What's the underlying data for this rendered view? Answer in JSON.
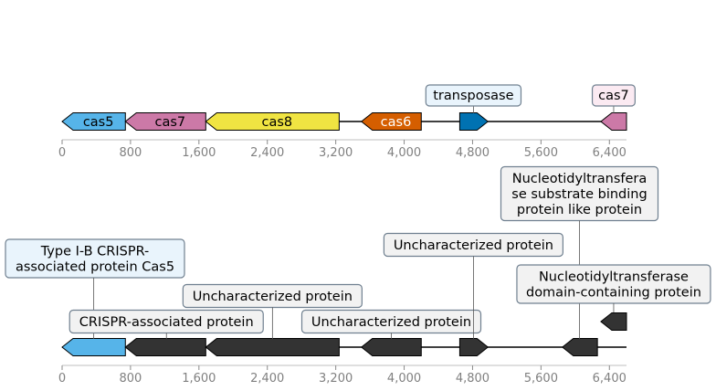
{
  "top_track": {
    "axis": {
      "min": 0,
      "max": 6600,
      "ticks": [
        0,
        800,
        1600,
        2400,
        3200,
        4000,
        4800,
        5600,
        6400
      ],
      "tick_labels": [
        "0",
        "800",
        "1,600",
        "2,400",
        "3,200",
        "4,000",
        "4,800",
        "5,600",
        "6,400"
      ]
    },
    "genes": [
      {
        "id": "cas5",
        "label": "cas5",
        "start": 0,
        "end": 740,
        "strand": -1,
        "color": "#56b4e9",
        "text_color": "#000000"
      },
      {
        "id": "cas7",
        "label": "cas7",
        "start": 740,
        "end": 1680,
        "strand": -1,
        "color": "#cc79a7",
        "text_color": "#000000"
      },
      {
        "id": "cas8",
        "label": "cas8",
        "start": 1680,
        "end": 3240,
        "strand": -1,
        "color": "#f0e442",
        "text_color": "#000000"
      },
      {
        "id": "cas6",
        "label": "cas6",
        "start": 3500,
        "end": 4200,
        "strand": -1,
        "color": "#d55e00",
        "text_color": "#ffffff"
      },
      {
        "id": "transposase-gene",
        "label": "",
        "start": 4650,
        "end": 4980,
        "strand": 1,
        "color": "#0072b2",
        "text_color": "#000000"
      },
      {
        "id": "cas7-partial",
        "label": "",
        "start": 6300,
        "end": 6600,
        "strand": -1,
        "color": "#cc79a7",
        "text_color": "#000000"
      }
    ],
    "callouts": [
      {
        "id": "transposase",
        "label": "transposase",
        "position": 4810,
        "fill": "#e9f4fc",
        "stroke": "#708090"
      },
      {
        "id": "cas7-label",
        "label": "cas7",
        "position": 6450,
        "fill": "#fbeaf2",
        "stroke": "#708090"
      }
    ]
  },
  "bottom_track": {
    "axis": {
      "min": 0,
      "max": 6600,
      "ticks": [
        0,
        800,
        1600,
        2400,
        3200,
        4000,
        4800,
        5600,
        6400
      ],
      "tick_labels": [
        "0",
        "800",
        "1,600",
        "2,400",
        "3,200",
        "4,000",
        "4,800",
        "5,600",
        "6,400"
      ]
    },
    "genes": [
      {
        "id": "g1",
        "start": 0,
        "end": 740,
        "strand": -1,
        "color": "#56b4e9",
        "row": 0
      },
      {
        "id": "g2",
        "start": 740,
        "end": 1680,
        "strand": -1,
        "color": "#333333",
        "row": 0
      },
      {
        "id": "g3",
        "start": 1680,
        "end": 3240,
        "strand": -1,
        "color": "#333333",
        "row": 0
      },
      {
        "id": "g4",
        "start": 3500,
        "end": 4200,
        "strand": -1,
        "color": "#333333",
        "row": 0
      },
      {
        "id": "g5",
        "start": 4650,
        "end": 4980,
        "strand": 1,
        "color": "#333333",
        "row": 0
      },
      {
        "id": "g6",
        "start": 5850,
        "end": 6260,
        "strand": -1,
        "color": "#333333",
        "row": 0
      },
      {
        "id": "g7",
        "start": 6300,
        "end": 6600,
        "strand": -1,
        "color": "#333333",
        "row": 1
      }
    ],
    "callouts": [
      {
        "id": "cas5-protein",
        "lines": [
          "Type I-B CRISPR-",
          "associated protein Cas5"
        ],
        "position": 370,
        "level": 3,
        "fill": "#e9f4fc"
      },
      {
        "id": "crispr-protein",
        "lines": [
          "CRISPR-associated protein"
        ],
        "position": 1220,
        "level": 0,
        "fill": "#f2f2f2"
      },
      {
        "id": "uncharacterized-1",
        "lines": [
          "Uncharacterized protein"
        ],
        "position": 2460,
        "level": 1,
        "fill": "#f2f2f2"
      },
      {
        "id": "uncharacterized-2",
        "lines": [
          "Uncharacterized protein"
        ],
        "position": 3850,
        "level": 0,
        "fill": "#f2f2f2"
      },
      {
        "id": "uncharacterized-3",
        "lines": [
          "Uncharacterized protein"
        ],
        "position": 4810,
        "level": 2,
        "fill": "#f2f2f2"
      },
      {
        "id": "nucleotidyltransferase-binding",
        "lines": [
          "Nucleotidyltransfera",
          "se substrate binding",
          "protein like protein"
        ],
        "position": 6050,
        "level": 4,
        "fill": "#f2f2f2"
      },
      {
        "id": "nucleotidyltransferase-domain",
        "lines": [
          "Nucleotidyltransferase",
          "domain-containing protein"
        ],
        "position": 6450,
        "level": 1.5,
        "fill": "#f2f2f2"
      }
    ]
  }
}
